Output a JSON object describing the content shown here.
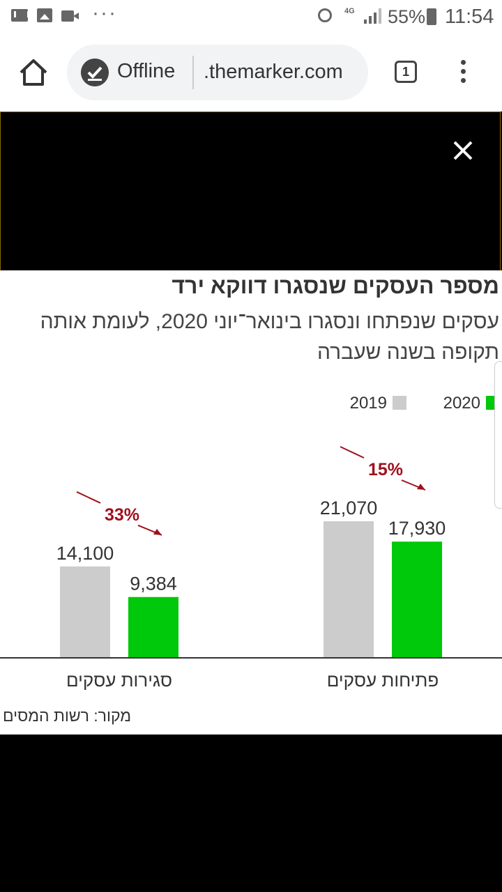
{
  "status_bar": {
    "battery_percent": "55%",
    "time": "11:54",
    "network": "4G",
    "icons": [
      "mail-icon",
      "image-icon",
      "video-icon",
      "more-dots-icon",
      "alarm-icon",
      "signal-icon",
      "battery-icon"
    ]
  },
  "toolbar": {
    "offline_label": "Offline",
    "url": ".themarker.com",
    "tab_count": "1"
  },
  "graphic": {
    "title": "מספר העסקים שנסגרו דווקא ירד",
    "subtitle": "עסקים שנפתחו ונסגרו בינואר־יוני 2020, לעומת אותה תקופה בשנה שעברה",
    "source": "מקור: רשות המסים"
  },
  "chart_data": {
    "type": "bar",
    "categories": [
      "סגירות עסקים",
      "פתיחות עסקים"
    ],
    "series": [
      {
        "name": "2019",
        "values": [
          14100,
          21070
        ],
        "color": "#cccccc"
      },
      {
        "name": "2020",
        "values": [
          9384,
          17930
        ],
        "color": "#00c80a"
      }
    ],
    "data_labels": [
      [
        "14,100",
        "21,070"
      ],
      [
        "9,384",
        "17,930"
      ]
    ],
    "change_labels": [
      "33%",
      "15%"
    ],
    "change_color": "#a0101e",
    "legend_placement": "top-right",
    "ylim": [
      0,
      21070
    ]
  }
}
